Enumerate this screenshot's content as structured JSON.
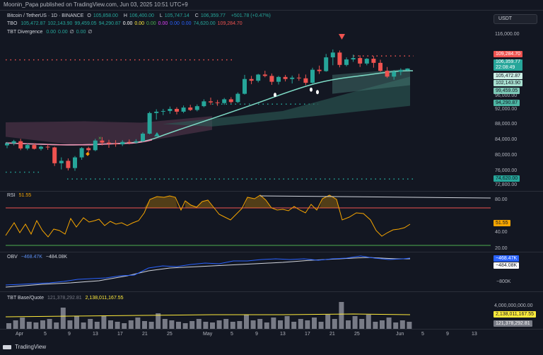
{
  "published": "Moonin_Papa published on TradingView.com, Jun 03, 2025 10:51 UTC+9",
  "currency_badge": "USDT",
  "main": {
    "symbol": "Bitcoin / TetherUS · 1D · BINANCE",
    "o_label": "O",
    "o": "105,858.00",
    "h_label": "H",
    "h": "106,400.00",
    "l_label": "L",
    "l": "105,747.14",
    "c_label": "C",
    "c": "106,359.77",
    "change": "+501.78 (+0.47%)",
    "tbo_label": "TBO",
    "tbo_values": [
      "105,472.87",
      "102,143.90",
      "99,459.05",
      "94,290.87",
      "0.00",
      "0.00",
      "0.00",
      "0.00",
      "0.00",
      "0.00",
      "74,620.00",
      "109,284.70"
    ],
    "tbo_colors": [
      "#26a69a",
      "#26a69a",
      "#26a69a",
      "#26a69a",
      "#ffffff",
      "#ffeb3b",
      "#4caf50",
      "#e040fb",
      "#2962ff",
      "#2962ff",
      "#26a69a",
      "#ef5350"
    ],
    "tbt_div_label": "TBT Divergence",
    "tbt_div_values": [
      "0.00",
      "0.00",
      "∅",
      "0.00",
      "∅"
    ],
    "y_ticks": [
      "116,000.00",
      "96,000.00",
      "92,000.00",
      "88,000.00",
      "84,000.00",
      "80,000.00",
      "76,000.00",
      "72,800.00"
    ],
    "price_labels": {
      "red": "109,284.70",
      "current": "106,359.77",
      "countdown": "22:08:49",
      "l1": "105,472.87",
      "l2": "102,143.90",
      "l3": "99,459.05",
      "l4": "94,290.87",
      "l5": "74,620.00"
    }
  },
  "rsi": {
    "label": "RSI",
    "value": "51.55",
    "y_ticks": [
      "80.00",
      "40.00",
      "20.00"
    ],
    "marker": "51.55"
  },
  "obv": {
    "label": "OBV",
    "v1": "−468.47K",
    "v2": "−484.08K",
    "y_ticks": [
      "−800K"
    ],
    "m1": "−468.47K",
    "m2": "−484.08K"
  },
  "tbt": {
    "label": "TBT Base/Quote",
    "v1": "121,378,292.81",
    "v2": "2,138,011,167.55",
    "y_ticks": [
      "4,000,000,000.00"
    ],
    "m1": "2,138,011,167.55",
    "m2": "121,378,292.81"
  },
  "x_ticks": [
    "Apr",
    "5",
    "9",
    "13",
    "17",
    "21",
    "25",
    "May",
    "5",
    "9",
    "13",
    "17",
    "21",
    "25",
    "Jun",
    "5",
    "9",
    "13"
  ],
  "footer": "TradingView",
  "colors": {
    "up": "#26a69a",
    "down": "#ef5350",
    "bg": "#131722",
    "ema": "#7fdcc7",
    "rsi": "#f7a600"
  },
  "chart_data": {
    "type": "candlestick",
    "symbol": "BTCUSDT",
    "ohlc": [
      [
        84000,
        85000,
        83200,
        84600
      ],
      [
        84600,
        85600,
        84000,
        85200
      ],
      [
        85200,
        85900,
        82600,
        83100
      ],
      [
        83100,
        84500,
        82600,
        84100
      ],
      [
        84100,
        84600,
        82800,
        83000
      ],
      [
        83000,
        83900,
        82500,
        83600
      ],
      [
        83600,
        84200,
        82700,
        83400
      ],
      [
        83400,
        83600,
        78000,
        78800
      ],
      [
        78800,
        80500,
        77000,
        79500
      ],
      [
        79500,
        80200,
        76700,
        77400
      ],
      [
        77400,
        80900,
        76600,
        80500
      ],
      [
        80500,
        83500,
        79800,
        83200
      ],
      [
        83200,
        83600,
        81900,
        82600
      ],
      [
        82600,
        85900,
        82300,
        85400
      ],
      [
        85400,
        86400,
        84000,
        84800
      ],
      [
        84800,
        85600,
        83300,
        84500
      ],
      [
        84500,
        85500,
        83600,
        84300
      ],
      [
        84300,
        85500,
        83800,
        85000
      ],
      [
        85000,
        85700,
        84300,
        84800
      ],
      [
        84800,
        85800,
        84500,
        85200
      ],
      [
        85200,
        87800,
        85000,
        87400
      ],
      [
        87400,
        93800,
        87200,
        93400
      ],
      [
        93400,
        94500,
        91500,
        93800
      ],
      [
        93800,
        94600,
        92800,
        94000
      ],
      [
        94000,
        95300,
        93200,
        94600
      ],
      [
        94600,
        95100,
        93000,
        93800
      ],
      [
        93800,
        95600,
        93400,
        95000
      ],
      [
        95000,
        95800,
        94000,
        94300
      ],
      [
        94300,
        95900,
        93900,
        95400
      ],
      [
        95400,
        97400,
        95100,
        96800
      ],
      [
        96800,
        97900,
        95800,
        96500
      ],
      [
        96500,
        97200,
        95500,
        96300
      ],
      [
        96300,
        97800,
        95800,
        97400
      ],
      [
        97400,
        98000,
        96200,
        96600
      ],
      [
        96600,
        99400,
        96300,
        99000
      ],
      [
        99000,
        104500,
        98800,
        103300
      ],
      [
        103300,
        104200,
        101800,
        102800
      ],
      [
        102800,
        104800,
        102300,
        104600
      ],
      [
        104600,
        105700,
        103800,
        104200
      ],
      [
        104200,
        104900,
        101600,
        102500
      ],
      [
        102500,
        104200,
        101700,
        103900
      ],
      [
        103900,
        104500,
        102600,
        103300
      ],
      [
        103300,
        104300,
        102000,
        103700
      ],
      [
        103700,
        104800,
        102800,
        103500
      ],
      [
        103500,
        104600,
        101500,
        102200
      ],
      [
        102200,
        106600,
        102000,
        106000
      ],
      [
        106000,
        107200,
        104800,
        105600
      ],
      [
        105600,
        110600,
        105400,
        109600
      ],
      [
        109600,
        111900,
        107300,
        111000
      ],
      [
        111000,
        111600,
        106700,
        107400
      ],
      [
        107400,
        109600,
        107000,
        109000
      ],
      [
        109000,
        110400,
        108300,
        109400
      ],
      [
        109400,
        110200,
        106800,
        107800
      ],
      [
        107800,
        109400,
        107300,
        109200
      ],
      [
        109200,
        110000,
        106600,
        108000
      ],
      [
        108000,
        108900,
        105400,
        105700
      ],
      [
        105700,
        106800,
        103600,
        104000
      ],
      [
        104000,
        105900,
        103100,
        105400
      ],
      [
        105400,
        106400,
        104400,
        105900
      ],
      [
        105858,
        106400,
        105747.14,
        106359.77
      ]
    ],
    "levels": {
      "tbo_resistance": 109284.7,
      "tbo_support": 74620.0
    },
    "rsi_last": 51.55,
    "obv_last": [
      "−468.47K",
      "−484.08K"
    ],
    "volume_last": [
      121378292.81,
      2138011167.55
    ]
  }
}
